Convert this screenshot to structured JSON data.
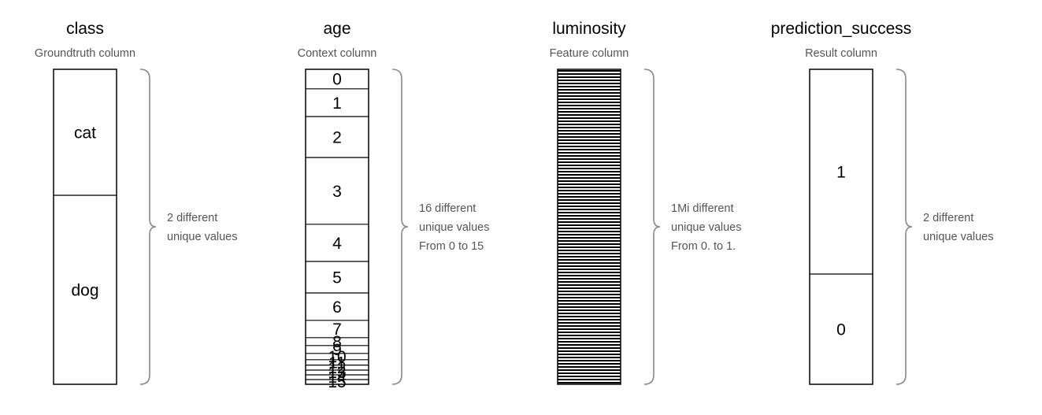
{
  "columns": [
    {
      "title": "class",
      "subtitle": "Groundtruth column",
      "kind": "segmented",
      "segments": [
        {
          "label": "cat",
          "fraction": 0.4,
          "show_label": true
        },
        {
          "label": "dog",
          "fraction": 0.6,
          "show_label": true
        }
      ],
      "description": [
        "2 different",
        "unique values"
      ]
    },
    {
      "title": "age",
      "subtitle": "Context column",
      "kind": "segmented",
      "segments": [
        {
          "label": "0",
          "fraction": 0.062
        },
        {
          "label": "1",
          "fraction": 0.088
        },
        {
          "label": "2",
          "fraction": 0.13
        },
        {
          "label": "3",
          "fraction": 0.212
        },
        {
          "label": "4",
          "fraction": 0.118
        },
        {
          "label": "5",
          "fraction": 0.1
        },
        {
          "label": "6",
          "fraction": 0.087
        },
        {
          "label": "7",
          "fraction": 0.055
        },
        {
          "label": "8",
          "fraction": 0.025
        },
        {
          "label": "9",
          "fraction": 0.025
        },
        {
          "label": "10",
          "fraction": 0.02
        },
        {
          "label": "11",
          "fraction": 0.017
        },
        {
          "label": "12",
          "fraction": 0.016
        },
        {
          "label": "13",
          "fraction": 0.015
        },
        {
          "label": "14",
          "fraction": 0.015
        },
        {
          "label": "15",
          "fraction": 0.015
        }
      ],
      "description": [
        "16 different",
        "unique values",
        "From 0 to 15"
      ]
    },
    {
      "title": "luminosity",
      "subtitle": "Feature column",
      "kind": "striped",
      "description": [
        "1Mi different",
        "unique values",
        "From 0. to 1."
      ]
    },
    {
      "title": "prediction_success",
      "subtitle": "Result column",
      "kind": "segmented",
      "segments": [
        {
          "label": "1",
          "fraction": 0.65
        },
        {
          "label": "0",
          "fraction": 0.35
        }
      ],
      "description": [
        "2 different",
        "unique values"
      ]
    }
  ]
}
